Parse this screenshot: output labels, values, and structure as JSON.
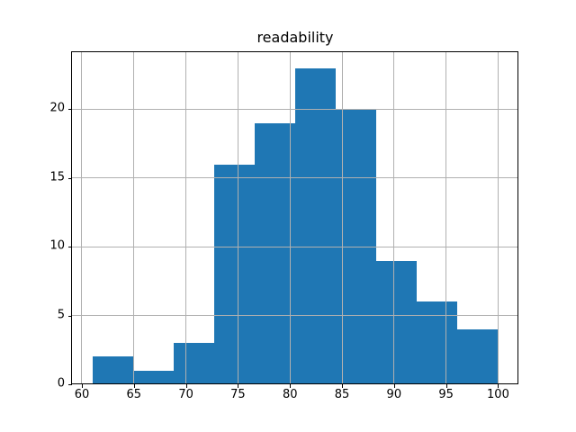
{
  "figure": {
    "background": "#ffffff"
  },
  "chart_data": {
    "type": "bar",
    "subtype": "histogram",
    "title": "readability",
    "xlabel": "",
    "ylabel": "",
    "bin_edges": [
      61.0,
      64.9,
      68.8,
      72.7,
      76.6,
      80.5,
      84.4,
      88.3,
      92.2,
      96.1,
      100.0
    ],
    "counts": [
      2,
      1,
      3,
      16,
      19,
      23,
      20,
      9,
      6,
      4
    ],
    "x_ticks": [
      60,
      65,
      70,
      75,
      80,
      85,
      90,
      95,
      100
    ],
    "y_ticks": [
      0,
      5,
      10,
      15,
      20
    ],
    "xlim": [
      59.05,
      101.95
    ],
    "ylim": [
      0,
      24.15
    ],
    "grid": true,
    "grid_on_top_of_bars": true,
    "legend_position": "none",
    "bar_color": "#1f77b4",
    "grid_color": "#b0b0b0",
    "spine_color": "#000000",
    "text_color": "#000000"
  }
}
